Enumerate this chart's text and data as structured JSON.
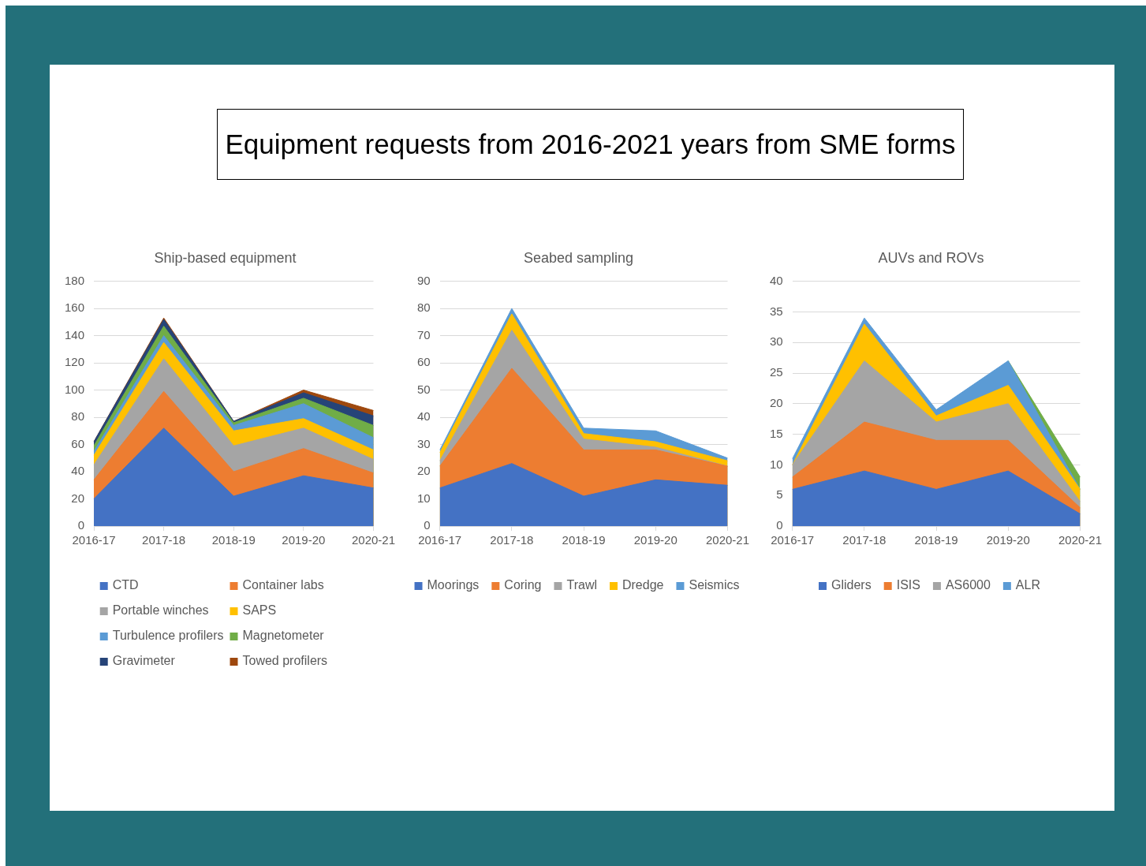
{
  "chart_data": [
    {
      "type": "other",
      "title": "Equipment requests from 2016-2021 years from SME forms"
    },
    {
      "type": "area",
      "title": "Ship-based equipment",
      "categories": [
        "2016-17",
        "2017-18",
        "2018-19",
        "2019-20",
        "2020-21"
      ],
      "stacked": true,
      "ylim": [
        0,
        180
      ],
      "yticks": [
        0,
        20,
        40,
        60,
        80,
        100,
        120,
        140,
        160,
        180
      ],
      "grid": "y",
      "legend": "bottom",
      "series": [
        {
          "name": "CTD",
          "color": "#4472c4",
          "values": [
            20,
            72,
            22,
            37,
            28
          ]
        },
        {
          "name": "Container labs",
          "color": "#ed7d31",
          "values": [
            14,
            27,
            18,
            20,
            11
          ]
        },
        {
          "name": "Portable winches",
          "color": "#a5a5a5",
          "values": [
            11,
            24,
            19,
            15,
            10
          ]
        },
        {
          "name": "SAPS",
          "color": "#ffc000",
          "values": [
            7,
            12,
            11,
            7,
            7
          ]
        },
        {
          "name": "Turbulence profilers",
          "color": "#5b9bd5",
          "values": [
            3,
            5,
            4,
            11,
            9
          ]
        },
        {
          "name": "Magnetometer",
          "color": "#70ad47",
          "values": [
            4,
            7,
            2,
            4,
            9
          ]
        },
        {
          "name": "Gravimeter",
          "color": "#264478",
          "values": [
            3,
            5,
            1,
            4,
            7
          ]
        },
        {
          "name": "Towed profilers",
          "color": "#9e480e",
          "values": [
            0,
            1,
            0,
            2,
            4
          ]
        }
      ]
    },
    {
      "type": "area",
      "title": "Seabed sampling",
      "categories": [
        "2016-17",
        "2017-18",
        "2018-19",
        "2019-20",
        "2020-21"
      ],
      "stacked": true,
      "ylim": [
        0,
        90
      ],
      "yticks": [
        0,
        10,
        20,
        30,
        40,
        50,
        60,
        70,
        80,
        90
      ],
      "grid": "y",
      "legend": "bottom",
      "series": [
        {
          "name": "Moorings",
          "color": "#4472c4",
          "values": [
            14,
            23,
            11,
            17,
            15
          ]
        },
        {
          "name": "Coring",
          "color": "#ed7d31",
          "values": [
            8,
            35,
            17,
            11,
            7
          ]
        },
        {
          "name": "Trawl",
          "color": "#a5a5a5",
          "values": [
            2,
            14,
            4,
            1,
            0
          ]
        },
        {
          "name": "Dredge",
          "color": "#ffc000",
          "values": [
            3,
            6,
            2,
            2,
            2
          ]
        },
        {
          "name": "Seismics",
          "color": "#5b9bd5",
          "values": [
            1,
            2,
            2,
            4,
            1
          ]
        }
      ]
    },
    {
      "type": "area",
      "title": "AUVs and ROVs",
      "categories": [
        "2016-17",
        "2017-18",
        "2018-19",
        "2019-20",
        "2020-21"
      ],
      "stacked": true,
      "ylim": [
        0,
        40
      ],
      "yticks": [
        0,
        5,
        10,
        15,
        20,
        25,
        30,
        35,
        40
      ],
      "grid": "y",
      "legend": "bottom",
      "series": [
        {
          "name": "Gliders",
          "color": "#4472c4",
          "values": [
            6,
            9,
            6,
            9,
            2
          ]
        },
        {
          "name": "ISIS",
          "color": "#ed7d31",
          "values": [
            2,
            8,
            8,
            5,
            1
          ]
        },
        {
          "name": "AS6000",
          "color": "#a5a5a5",
          "values": [
            2,
            10,
            3,
            6,
            1
          ]
        },
        {
          "color": "#ffc000",
          "values": [
            0,
            6,
            1,
            3,
            2
          ]
        },
        {
          "name": "ALR",
          "color": "#5b9bd5",
          "values": [
            1,
            1,
            1,
            4,
            0
          ]
        },
        {
          "color": "#70ad47",
          "values": [
            null,
            null,
            null,
            0,
            2
          ]
        }
      ]
    }
  ]
}
